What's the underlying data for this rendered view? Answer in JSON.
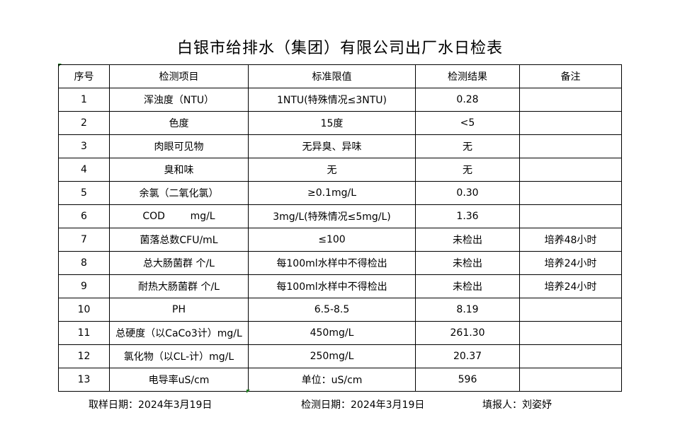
{
  "title": "白银市给排水（集团）有限公司出厂水日检表",
  "columns": [
    "序号",
    "检测项目",
    "标准限值",
    "检测结果",
    "备注"
  ],
  "rows": [
    {
      "no": "1",
      "item": "浑浊度（NTU）",
      "standard": "1NTU(特殊情况≤3NTU)",
      "result": "0.28",
      "note": ""
    },
    {
      "no": "2",
      "item": "色度",
      "standard": "15度",
      "result": "<5",
      "note": ""
    },
    {
      "no": "3",
      "item": "肉眼可见物",
      "standard": "无异臭、异味",
      "result": "无",
      "note": ""
    },
    {
      "no": "4",
      "item": "臭和味",
      "standard": "无",
      "result": "无",
      "note": ""
    },
    {
      "no": "5",
      "item": "余氯（二氧化氯）",
      "standard": "≥0.1mg/L",
      "result": "0.30",
      "note": ""
    },
    {
      "no": "6",
      "item": "COD        mg/L",
      "standard": "3mg/L(特殊情况≤5mg/L)",
      "result": "1.36",
      "note": ""
    },
    {
      "no": "7",
      "item": "菌落总数CFU/mL",
      "standard": "≤100",
      "result": "未检出",
      "note": "培养48小时"
    },
    {
      "no": "8",
      "item": "总大肠菌群 个/L",
      "standard": "每100ml水样中不得检出",
      "result": "未检出",
      "note": "培养24小时"
    },
    {
      "no": "9",
      "item": "耐热大肠菌群 个/L",
      "standard": "每100ml水样中不得检出",
      "result": "未检出",
      "note": "培养24小时"
    },
    {
      "no": "10",
      "item": "PH",
      "standard": "6.5-8.5",
      "result": "8.19",
      "note": ""
    },
    {
      "no": "11",
      "item": "总硬度（以CaCo3计）mg/L",
      "standard": "450mg/L",
      "result": "261.30",
      "note": ""
    },
    {
      "no": "12",
      "item": "氯化物（以CL-计）mg/L",
      "standard": "250mg/L",
      "result": "20.37",
      "note": ""
    },
    {
      "no": "13",
      "item": "电导率uS/cm",
      "standard": "单位：uS/cm",
      "result": "596",
      "note": ""
    }
  ],
  "footer": {
    "sample_date": "取样日期：2024年3月19日",
    "test_date": "检测日期：2024年3月19日",
    "reporter": "填报人：刘姿妤"
  }
}
